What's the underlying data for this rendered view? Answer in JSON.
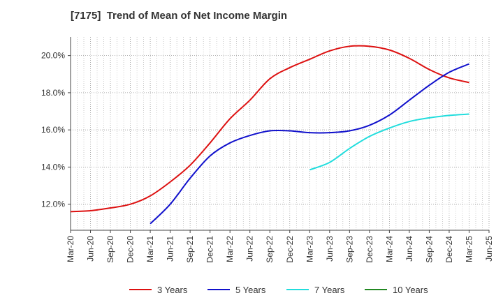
{
  "chart_data": {
    "type": "line",
    "title": "[7175]  Trend of Mean of Net Income Margin",
    "xlabel": "",
    "ylabel": "",
    "x_ticks": [
      "Mar-20",
      "Jun-20",
      "Sep-20",
      "Dec-20",
      "Mar-21",
      "Jun-21",
      "Sep-21",
      "Dec-21",
      "Mar-22",
      "Jun-22",
      "Sep-22",
      "Dec-22",
      "Mar-23",
      "Jun-23",
      "Sep-23",
      "Dec-23",
      "Mar-24",
      "Jun-24",
      "Sep-24",
      "Dec-24",
      "Mar-25",
      "Jun-25"
    ],
    "y_ticks": [
      "12.0%",
      "14.0%",
      "16.0%",
      "18.0%",
      "20.0%"
    ],
    "y_tick_values": [
      12,
      14,
      16,
      18,
      20
    ],
    "ylim": [
      10.6,
      21.0
    ],
    "grid": true,
    "legend_position": "bottom",
    "colors": {
      "3 Years": "#dd1111",
      "5 Years": "#1111cc",
      "7 Years": "#22dddd",
      "10 Years": "#228822"
    },
    "series": [
      {
        "name": "3 Years",
        "x": [
          "Mar-20",
          "Jun-20",
          "Sep-20",
          "Dec-20",
          "Mar-21",
          "Jun-21",
          "Sep-21",
          "Dec-21",
          "Mar-22",
          "Jun-22",
          "Sep-22",
          "Dec-22",
          "Mar-23",
          "Jun-23",
          "Sep-23",
          "Dec-23",
          "Mar-24",
          "Jun-24",
          "Sep-24",
          "Dec-24",
          "Mar-25"
        ],
        "values": [
          11.6,
          11.65,
          11.8,
          12.0,
          12.45,
          13.2,
          14.1,
          15.3,
          16.6,
          17.6,
          18.75,
          19.35,
          19.8,
          20.25,
          20.5,
          20.5,
          20.3,
          19.85,
          19.25,
          18.8,
          18.55
        ]
      },
      {
        "name": "5 Years",
        "x": [
          "Mar-21",
          "Jun-21",
          "Sep-21",
          "Dec-21",
          "Mar-22",
          "Jun-22",
          "Sep-22",
          "Dec-22",
          "Mar-23",
          "Jun-23",
          "Sep-23",
          "Dec-23",
          "Mar-24",
          "Jun-24",
          "Sep-24",
          "Dec-24",
          "Mar-25"
        ],
        "values": [
          10.95,
          12.0,
          13.4,
          14.6,
          15.3,
          15.7,
          15.95,
          15.95,
          15.85,
          15.85,
          15.95,
          16.25,
          16.8,
          17.6,
          18.4,
          19.1,
          19.55
        ]
      },
      {
        "name": "7 Years",
        "x": [
          "Mar-23",
          "Jun-23",
          "Sep-23",
          "Dec-23",
          "Mar-24",
          "Jun-24",
          "Sep-24",
          "Dec-24",
          "Mar-25"
        ],
        "values": [
          13.85,
          14.25,
          15.0,
          15.65,
          16.1,
          16.45,
          16.65,
          16.78,
          16.85
        ]
      },
      {
        "name": "10 Years",
        "x": [],
        "values": []
      }
    ]
  }
}
